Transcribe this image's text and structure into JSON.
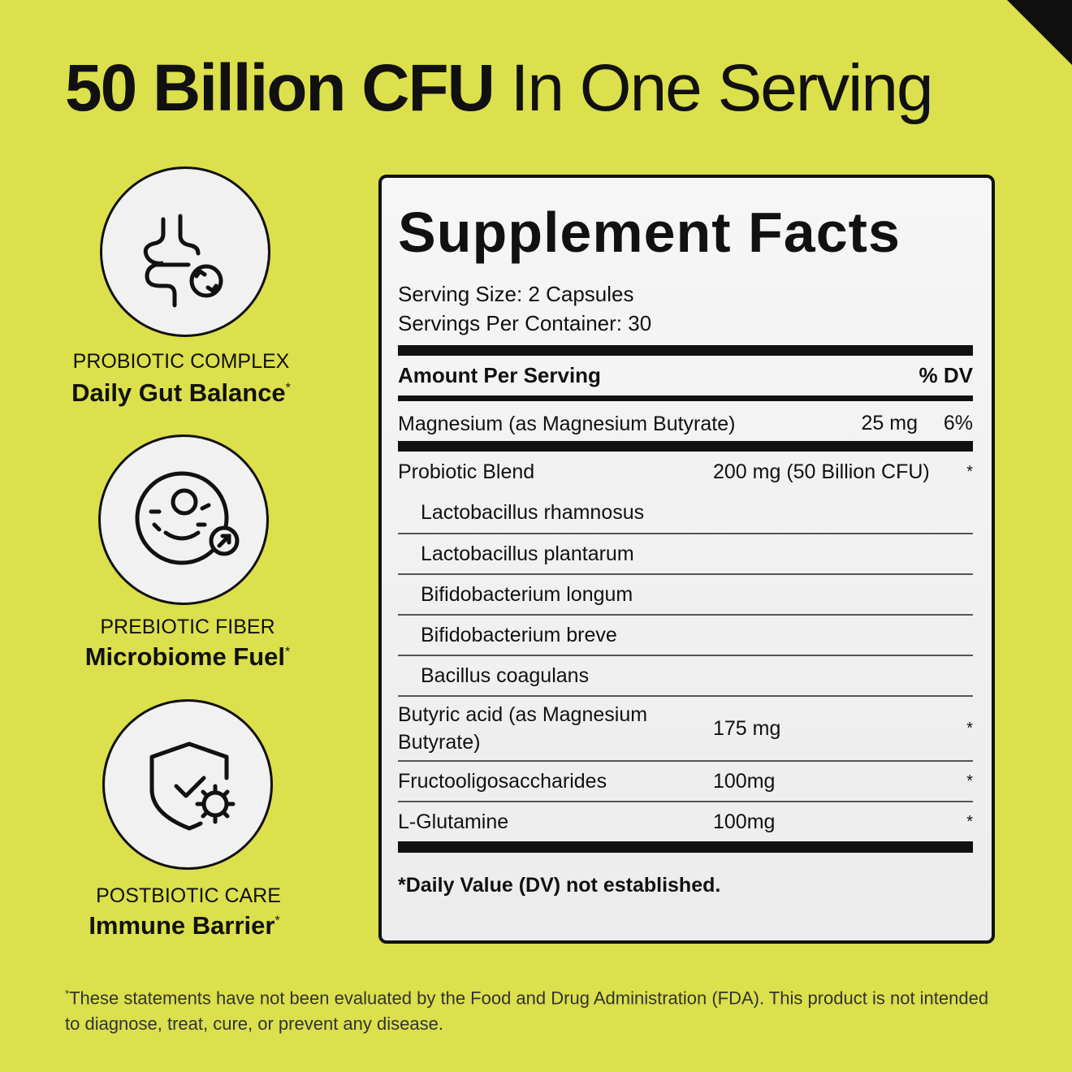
{
  "headline": {
    "bold": "50 Billion CFU",
    "regular": "In One Serving"
  },
  "features": [
    {
      "label": "PROBIOTIC COMPLEX",
      "title": "Daily Gut Balance",
      "mark": "*"
    },
    {
      "label": "PREBIOTIC FIBER",
      "title": "Microbiome Fuel",
      "mark": "*"
    },
    {
      "label": "POSTBIOTIC CARE",
      "title": "Immune Barrier",
      "mark": "*"
    }
  ],
  "facts": {
    "title": "Supplement Facts",
    "serving_size": "Serving Size: 2 Capsules",
    "servings_per_container": "Servings Per Container: 30",
    "header": {
      "left": "Amount Per Serving",
      "right": "% DV"
    },
    "rows": [
      {
        "name": "Magnesium (as Magnesium Butyrate)",
        "amount": "25 mg",
        "dv": "6%"
      },
      {
        "name": "Probiotic Blend",
        "amount": "200 mg (50 Billion CFU)",
        "dv": "*"
      },
      {
        "name": "Lactobacillus rhamnosus"
      },
      {
        "name": "Lactobacillus plantarum"
      },
      {
        "name": "Bifidobacterium longum"
      },
      {
        "name": "Bifidobacterium breve"
      },
      {
        "name": "Bacillus coagulans"
      },
      {
        "name": "Butyric acid (as Magnesium Butyrate)",
        "amount": "175 mg",
        "dv": "*"
      },
      {
        "name": "Fructooligosaccharides",
        "amount": "100mg",
        "dv": "*"
      },
      {
        "name": "L-Glutamine",
        "amount": "100mg",
        "dv": "*"
      }
    ],
    "note": "*Daily Value (DV) not established."
  },
  "disclaimer": {
    "mark": "*",
    "text": "These statements have not been evaluated by the Food and Drug Administration (FDA). This product is not intended to diagnose, treat, cure, or prevent any disease."
  }
}
